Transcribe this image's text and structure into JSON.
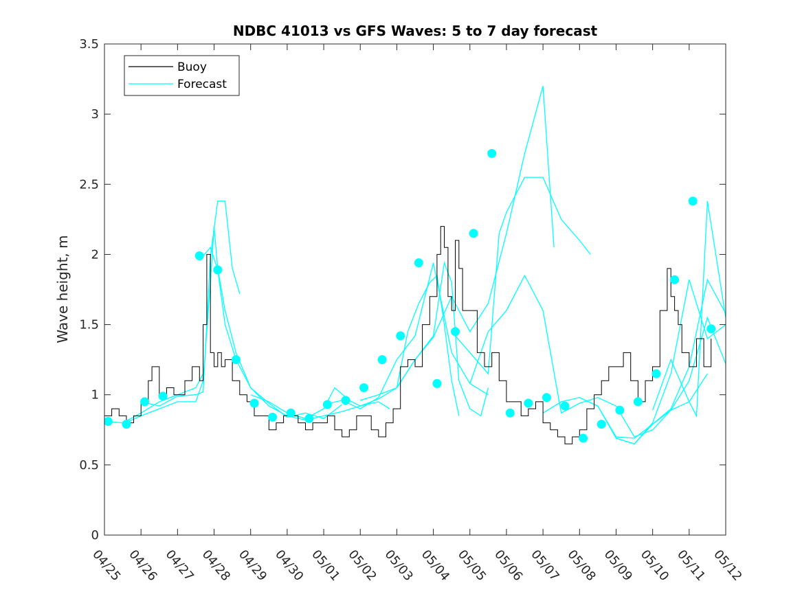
{
  "chart_data": {
    "type": "line",
    "title": "NDBC 41013 vs GFS Waves: 5 to 7 day forecast",
    "xlabel": "",
    "ylabel": "Wave height, m",
    "x_tick_labels": [
      "04/25",
      "04/26",
      "04/27",
      "04/28",
      "04/29",
      "04/30",
      "05/01",
      "05/02",
      "05/03",
      "05/04",
      "05/05",
      "05/06",
      "05/07",
      "05/08",
      "05/09",
      "05/10",
      "05/11",
      "05/12"
    ],
    "xlim": [
      0,
      17
    ],
    "ylim": [
      0,
      3.5
    ],
    "y_ticks": [
      "0",
      "0.5",
      "1",
      "1.5",
      "2",
      "2.5",
      "3",
      "3.5"
    ],
    "grid": false,
    "legend_position": "top-left",
    "legend": [
      {
        "label": "Buoy",
        "color": "#000000"
      },
      {
        "label": "Forecast",
        "color": "#00ffff"
      }
    ],
    "colors": {
      "buoy": "#000000",
      "forecast": "#00ffff"
    },
    "series": [
      {
        "name": "Buoy",
        "x": [
          0,
          0.2,
          0.4,
          0.6,
          0.8,
          1.0,
          1.2,
          1.3,
          1.5,
          1.7,
          1.9,
          2.0,
          2.2,
          2.4,
          2.6,
          2.7,
          2.8,
          2.9,
          3.0,
          3.1,
          3.2,
          3.3,
          3.5,
          3.7,
          3.9,
          4.1,
          4.3,
          4.5,
          4.7,
          4.9,
          5.1,
          5.3,
          5.5,
          5.7,
          5.9,
          6.1,
          6.3,
          6.5,
          6.7,
          6.9,
          7.1,
          7.3,
          7.5,
          7.7,
          7.9,
          8.1,
          8.3,
          8.5,
          8.7,
          8.9,
          9.1,
          9.2,
          9.3,
          9.4,
          9.5,
          9.6,
          9.7,
          9.8,
          10.0,
          10.2,
          10.4,
          10.6,
          10.8,
          11.0,
          11.2,
          11.4,
          11.6,
          11.8,
          12.0,
          12.2,
          12.4,
          12.6,
          12.8,
          13.0,
          13.2,
          13.4,
          13.6,
          13.8,
          14.0,
          14.2,
          14.4,
          14.6,
          14.8,
          15.0,
          15.2,
          15.4,
          15.5,
          15.6,
          15.7,
          15.8,
          16.0,
          16.2,
          16.4,
          16.6
        ],
        "y": [
          0.85,
          0.9,
          0.85,
          0.8,
          0.85,
          0.95,
          1.1,
          1.2,
          1.0,
          1.05,
          1.0,
          1.0,
          1.1,
          1.2,
          1.1,
          1.5,
          2.0,
          1.3,
          1.2,
          1.3,
          1.2,
          1.25,
          1.1,
          1.0,
          0.95,
          0.85,
          0.85,
          0.75,
          0.8,
          0.85,
          0.85,
          0.8,
          0.75,
          0.8,
          0.8,
          0.85,
          0.75,
          0.7,
          0.75,
          0.85,
          0.85,
          0.75,
          0.7,
          0.8,
          0.9,
          1.2,
          1.25,
          1.2,
          1.5,
          1.7,
          2.0,
          2.2,
          2.05,
          1.7,
          1.6,
          2.1,
          1.9,
          1.6,
          1.6,
          1.3,
          1.2,
          1.3,
          1.1,
          0.95,
          0.95,
          0.85,
          0.9,
          0.95,
          0.8,
          0.75,
          0.7,
          0.65,
          0.7,
          0.75,
          0.9,
          1.0,
          1.1,
          1.2,
          1.2,
          1.3,
          1.1,
          0.95,
          1.1,
          1.2,
          1.6,
          1.9,
          1.7,
          1.6,
          1.5,
          1.3,
          1.2,
          1.4,
          1.2,
          1.4
        ]
      },
      {
        "name": "Forecast",
        "segments": [
          {
            "x": [
              0,
              0.5,
              1.0,
              1.5,
              2.0,
              2.5,
              2.7
            ],
            "y": [
              0.81,
              0.8,
              0.87,
              0.95,
              1.0,
              1.05,
              1.15
            ]
          },
          {
            "x": [
              0.5,
              1.0,
              1.5,
              2.0,
              2.5,
              2.7,
              2.9,
              3.0,
              3.1,
              3.3,
              3.6,
              4.0,
              4.5,
              5.0,
              5.5,
              6.0,
              6.5,
              7.0,
              7.5,
              7.8
            ],
            "y": [
              0.79,
              0.85,
              0.9,
              0.95,
              0.95,
              1.1,
              1.8,
              2.2,
              1.9,
              1.6,
              1.3,
              1.05,
              0.92,
              0.85,
              0.82,
              0.85,
              0.88,
              0.92,
              0.95,
              0.9
            ]
          },
          {
            "x": [
              1.0,
              1.5,
              2.0,
              2.5,
              2.7,
              2.9,
              3.1,
              3.3,
              3.5,
              3.7
            ],
            "y": [
              0.95,
              0.92,
              0.99,
              1.0,
              1.02,
              1.99,
              2.38,
              2.38,
              1.9,
              1.72
            ]
          },
          {
            "x": [
              2.7,
              2.9,
              3.1,
              3.3,
              3.6,
              4.0,
              4.5,
              5.0,
              5.5,
              6.0,
              6.5
            ],
            "y": [
              1.99,
              2.05,
              1.89,
              1.5,
              1.25,
              1.05,
              0.94,
              0.84,
              0.87,
              0.83,
              0.93
            ]
          },
          {
            "x": [
              4.0,
              4.5,
              5.0,
              5.5,
              6.0,
              6.3,
              6.7,
              7.0,
              7.5,
              8.0,
              8.3,
              8.6,
              8.9,
              9.1,
              9.3,
              9.5,
              9.7
            ],
            "y": [
              1.0,
              0.95,
              0.87,
              0.83,
              0.9,
              1.05,
              0.96,
              0.92,
              0.97,
              1.05,
              1.45,
              1.65,
              1.8,
              1.85,
              1.5,
              1.1,
              0.85
            ]
          },
          {
            "x": [
              6.0,
              6.5,
              7.0,
              7.5,
              8.0,
              8.5,
              9.0,
              9.5,
              10.0,
              10.5
            ],
            "y": [
              0.93,
              0.96,
              0.9,
              0.98,
              1.25,
              1.42,
              1.94,
              1.3,
              1.08,
              1.0
            ]
          },
          {
            "x": [
              7.0,
              7.5,
              8.0,
              8.5,
              9.0,
              9.3,
              9.5,
              9.7,
              10.0,
              10.3,
              10.5
            ],
            "y": [
              0.96,
              1.0,
              1.05,
              1.25,
              1.42,
              1.94,
              1.8,
              1.1,
              0.9,
              0.85,
              1.05
            ]
          },
          {
            "x": [
              8.0,
              8.5,
              9.0,
              9.5,
              10.0,
              10.5,
              11.0,
              11.5,
              12.0,
              12.3
            ],
            "y": [
              1.05,
              1.25,
              1.41,
              1.7,
              1.45,
              1.65,
              2.15,
              2.72,
              3.2,
              2.05
            ]
          },
          {
            "x": [
              9.5,
              10.0,
              10.5,
              10.8,
              11.0,
              11.5,
              12.0,
              12.5,
              13.0,
              13.3
            ],
            "y": [
              1.45,
              1.3,
              1.15,
              2.15,
              2.3,
              2.55,
              2.55,
              2.25,
              2.1,
              2.0
            ]
          },
          {
            "x": [
              10.0,
              10.5,
              11.0,
              11.5,
              12.0,
              12.5,
              13.0,
              13.5,
              14.0,
              14.5,
              15.0,
              15.5,
              16.0,
              16.5
            ],
            "y": [
              1.08,
              1.45,
              1.6,
              1.85,
              1.6,
              0.87,
              0.94,
              0.98,
              0.92,
              0.7,
              0.75,
              0.89,
              0.95,
              1.15
            ]
          },
          {
            "x": [
              12.0,
              12.5,
              13.0,
              13.5,
              14.0,
              14.5,
              15.0,
              15.5,
              16.0,
              16.5,
              17.0
            ],
            "y": [
              0.87,
              0.95,
              0.98,
              0.92,
              0.7,
              0.69,
              0.79,
              0.89,
              1.1,
              1.55,
              1.22
            ]
          },
          {
            "x": [
              13.0,
              13.5,
              14.0,
              14.5,
              15.0,
              15.5,
              16.0,
              16.5,
              17.0
            ],
            "y": [
              0.98,
              0.92,
              0.69,
              0.65,
              0.79,
              0.9,
              1.2,
              1.82,
              1.58
            ]
          },
          {
            "x": [
              14.0,
              14.5,
              15.0,
              15.5,
              16.0,
              16.5,
              17.0
            ],
            "y": [
              0.69,
              0.65,
              0.8,
              1.15,
              1.82,
              1.4,
              1.5
            ]
          },
          {
            "x": [
              15.0,
              15.5,
              16.0,
              16.2,
              16.5,
              17.0
            ],
            "y": [
              0.89,
              1.25,
              0.95,
              0.85,
              2.38,
              1.55
            ]
          }
        ],
        "markers": {
          "x": [
            0.1,
            0.6,
            1.1,
            1.6,
            2.6,
            3.1,
            3.6,
            4.1,
            4.6,
            5.1,
            5.6,
            6.1,
            6.6,
            7.1,
            7.6,
            8.1,
            8.6,
            9.1,
            9.6,
            10.1,
            10.6,
            11.1,
            11.6,
            12.1,
            12.6,
            13.1,
            13.6,
            14.1,
            14.6,
            15.1,
            15.6,
            16.1,
            16.6
          ],
          "y": [
            0.81,
            0.79,
            0.95,
            0.99,
            1.99,
            1.89,
            1.25,
            0.94,
            0.84,
            0.87,
            0.83,
            0.93,
            0.96,
            1.05,
            1.25,
            1.42,
            1.94,
            1.08,
            1.45,
            2.15,
            2.72,
            0.87,
            0.94,
            0.98,
            0.92,
            0.69,
            0.79,
            0.89,
            0.95,
            1.15,
            1.82,
            2.38,
            1.47
          ]
        }
      }
    ]
  }
}
